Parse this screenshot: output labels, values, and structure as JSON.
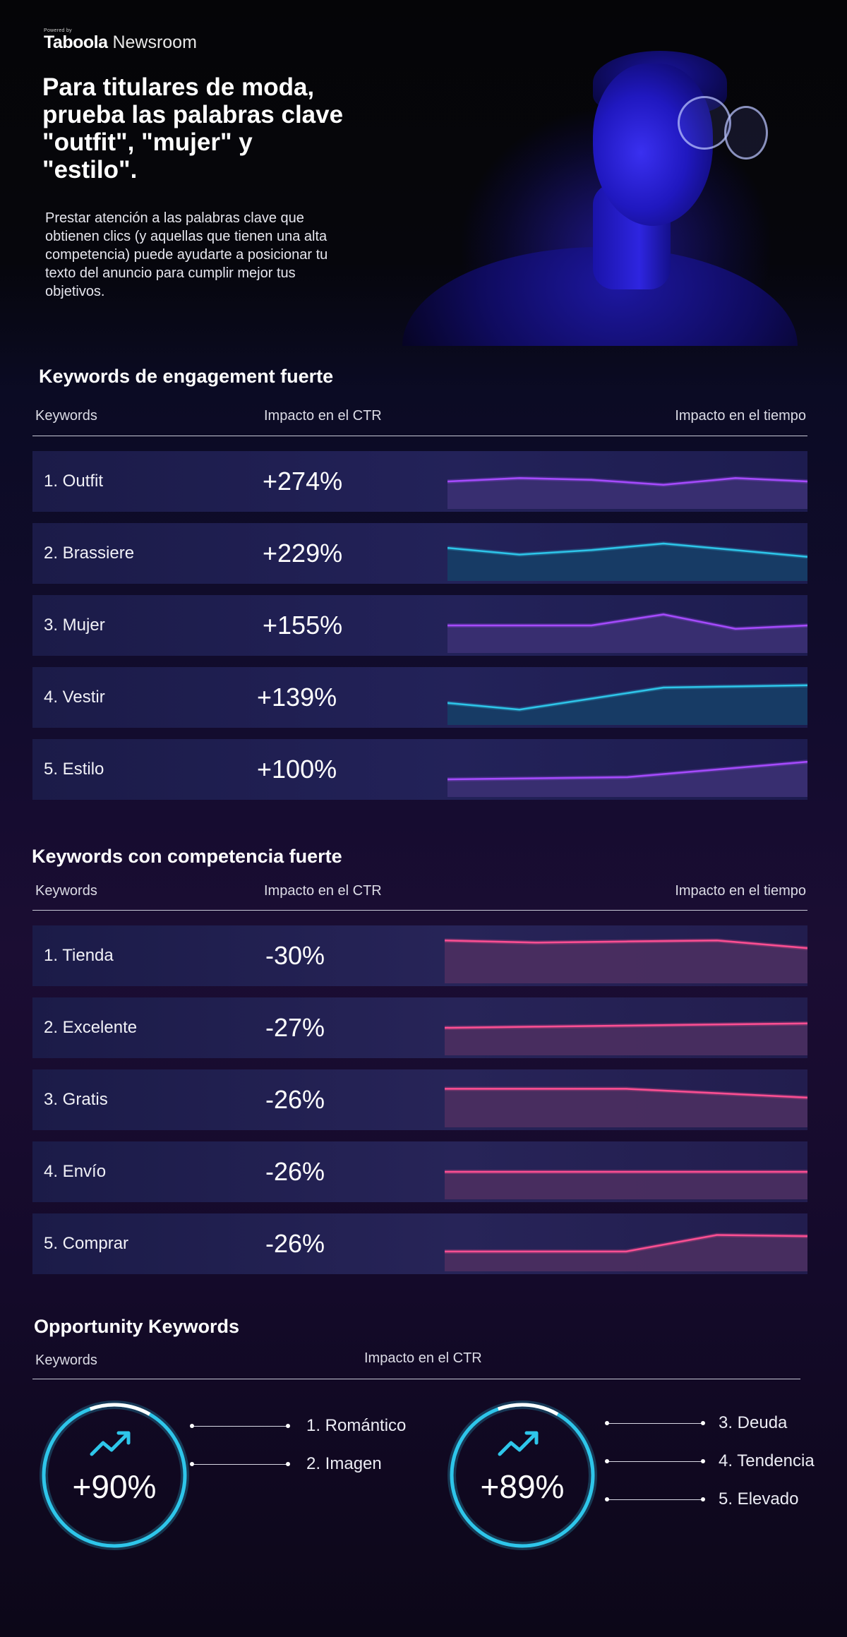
{
  "header": {
    "powered": "Powered by",
    "brand": "Taboola",
    "product": "Newsroom",
    "headline": "Para titulares de moda, prueba las palabras clave \"outfit\", \"mujer\" y \"estilo\".",
    "intro": "Prestar atención a las palabras clave que obtienen clics (y aquellas que tienen una alta competencia) puede ayudarte a posicionar tu texto del anuncio para cumplir mejor tus objetivos."
  },
  "colors": {
    "purple_line": "#a64bff",
    "purple_fill": "#3a2f72",
    "cyan_line": "#2ec6ea",
    "cyan_fill": "#173d66",
    "pink_line": "#ff4f93",
    "pink_fill": "#4a2e60",
    "gauge_ring": "#2ec6ea"
  },
  "chart_data": [
    {
      "type": "table",
      "title": "Keywords de engagement fuerte",
      "columns": [
        "Keywords",
        "Impacto en el CTR",
        "Impacto en el tiempo"
      ],
      "rows": [
        {
          "keyword": "1. Outfit",
          "ctr": "+274%",
          "color": "purple",
          "trend": [
            5,
            5.6,
            5.3,
            4.4,
            5.6,
            5
          ]
        },
        {
          "keyword": "2. Brassiere",
          "ctr": "+229%",
          "color": "cyan",
          "trend": [
            6,
            4.8,
            5.6,
            6.8,
            5.6,
            4.4
          ]
        },
        {
          "keyword": "3. Mujer",
          "ctr": "+155%",
          "color": "purple",
          "trend": [
            5,
            5,
            5,
            7,
            4.4,
            5
          ]
        },
        {
          "keyword": "4. Vestir",
          "ctr": "+139%",
          "color": "cyan",
          "trend": [
            4,
            2.8,
            4.8,
            6.8,
            7,
            7.2
          ]
        },
        {
          "keyword": "5. Estilo",
          "ctr": "+100%",
          "color": "purple",
          "trend": [
            3.2,
            3.4,
            3.6,
            5,
            6.4
          ]
        }
      ]
    },
    {
      "type": "table",
      "title": "Keywords con competencia fuerte",
      "columns": [
        "Keywords",
        "Impacto en el CTR",
        "Impacto en el tiempo"
      ],
      "rows": [
        {
          "keyword": "1. Tienda",
          "ctr": "-30%",
          "color": "pink",
          "trend": [
            7.8,
            7.4,
            7.6,
            7.8,
            6.4
          ]
        },
        {
          "keyword": "2. Excelente",
          "ctr": "-27%",
          "color": "pink",
          "trend": [
            5,
            5.2,
            5.4,
            5.6,
            5.8
          ]
        },
        {
          "keyword": "3. Gratis",
          "ctr": "-26%",
          "color": "pink",
          "trend": [
            7,
            7,
            7,
            6.2,
            5.4
          ]
        },
        {
          "keyword": "4. Envío",
          "ctr": "-26%",
          "color": "pink",
          "trend": [
            5,
            5,
            5,
            5,
            5
          ]
        },
        {
          "keyword": "5. Comprar",
          "ctr": "-26%",
          "color": "pink",
          "trend": [
            3.6,
            3.6,
            3.6,
            6.6,
            6.4
          ]
        }
      ]
    },
    {
      "type": "gauge",
      "title": "Opportunity Keywords",
      "columns": [
        "Keywords",
        "Impacto en el CTR"
      ],
      "groups": [
        {
          "value": "+90%",
          "keywords": [
            "1. Romántico",
            "2. Imagen"
          ]
        },
        {
          "value": "+89%",
          "keywords": [
            "3. Deuda",
            "4. Tendencia",
            "5. Elevado"
          ]
        }
      ]
    }
  ]
}
